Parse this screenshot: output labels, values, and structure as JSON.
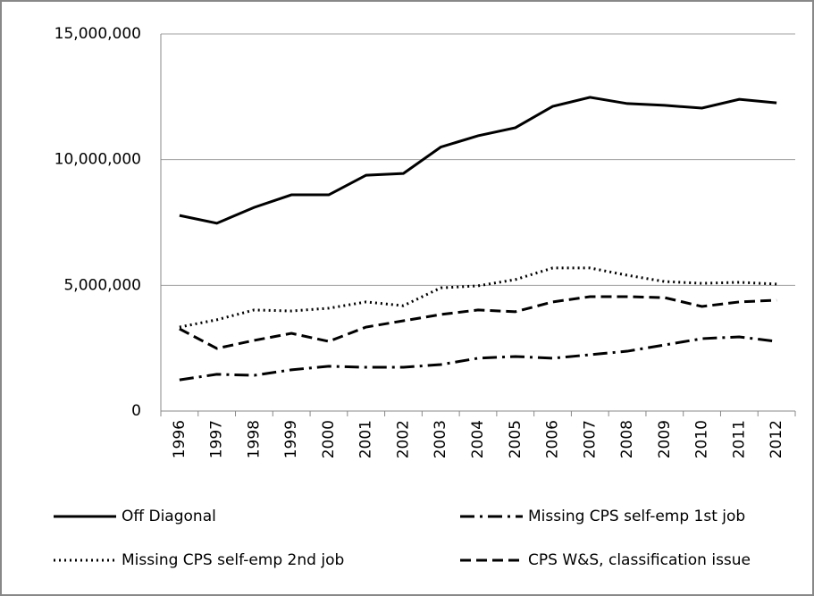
{
  "chart_data": {
    "type": "line",
    "categories": [
      "1996",
      "1997",
      "1998",
      "1999",
      "2000",
      "2001",
      "2002",
      "2003",
      "2004",
      "2005",
      "2006",
      "2007",
      "2008",
      "2009",
      "2010",
      "2011",
      "2012"
    ],
    "series": [
      {
        "name": "Off Diagonal",
        "color": "#000000",
        "dash": "solid",
        "values": [
          7780000,
          7470000,
          8100000,
          8600000,
          8600000,
          9380000,
          9450000,
          10500000,
          10950000,
          11270000,
          12120000,
          12480000,
          12230000,
          12160000,
          12050000,
          12400000,
          12260000
        ]
      },
      {
        "name": "Missing CPS self-emp 1st job",
        "color": "#000000",
        "dash": "dashdot",
        "values": [
          1240000,
          1460000,
          1420000,
          1640000,
          1780000,
          1740000,
          1740000,
          1850000,
          2100000,
          2170000,
          2100000,
          2240000,
          2380000,
          2630000,
          2880000,
          2950000,
          2770000
        ]
      },
      {
        "name": "Missing CPS self-emp 2nd job",
        "color": "#000000",
        "dash": "dotted",
        "values": [
          3340000,
          3630000,
          4020000,
          3980000,
          4090000,
          4340000,
          4190000,
          4900000,
          4980000,
          5230000,
          5690000,
          5690000,
          5400000,
          5150000,
          5080000,
          5120000,
          5050000
        ]
      },
      {
        "name": "CPS W&S, classification issue",
        "color": "#000000",
        "dash": "dashed",
        "values": [
          3270000,
          2490000,
          2810000,
          3090000,
          2770000,
          3340000,
          3590000,
          3840000,
          4020000,
          3950000,
          4340000,
          4550000,
          4550000,
          4510000,
          4160000,
          4340000,
          4410000
        ]
      }
    ],
    "ylim": [
      0,
      15000000
    ],
    "yticks": [
      0,
      {
        "value": 5000000,
        "label": "5,000,000"
      },
      {
        "value": 10000000,
        "label": "10,000,000"
      },
      {
        "value": 15000000,
        "label": "15,000,000"
      }
    ],
    "grid": true,
    "legend": "bottom"
  }
}
